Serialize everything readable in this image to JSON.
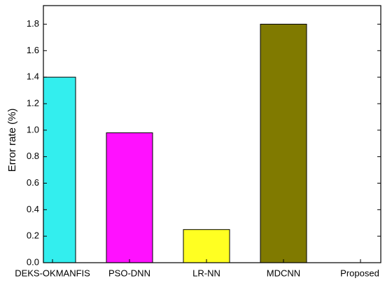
{
  "chart_data": {
    "type": "bar",
    "y_label": "Error rate (%)",
    "categories": [
      "DEKS-OKMANFIS",
      "PSO-DNN",
      "LR-NN",
      "MDCNN",
      "Proposed"
    ],
    "values": [
      1.4,
      0.98,
      0.25,
      1.8,
      0
    ],
    "colors": [
      "#33eeee",
      "#ff11ff",
      "#ffff22",
      "#807a00"
    ],
    "ylim": [
      0,
      1.94
    ],
    "yticks": [
      {
        "value": 0,
        "label": "0.0"
      },
      0.2,
      0.4,
      0.6,
      0.8,
      {
        "value": 1,
        "label": "1.0"
      },
      1.2,
      1.4,
      1.6,
      1.8
    ]
  }
}
